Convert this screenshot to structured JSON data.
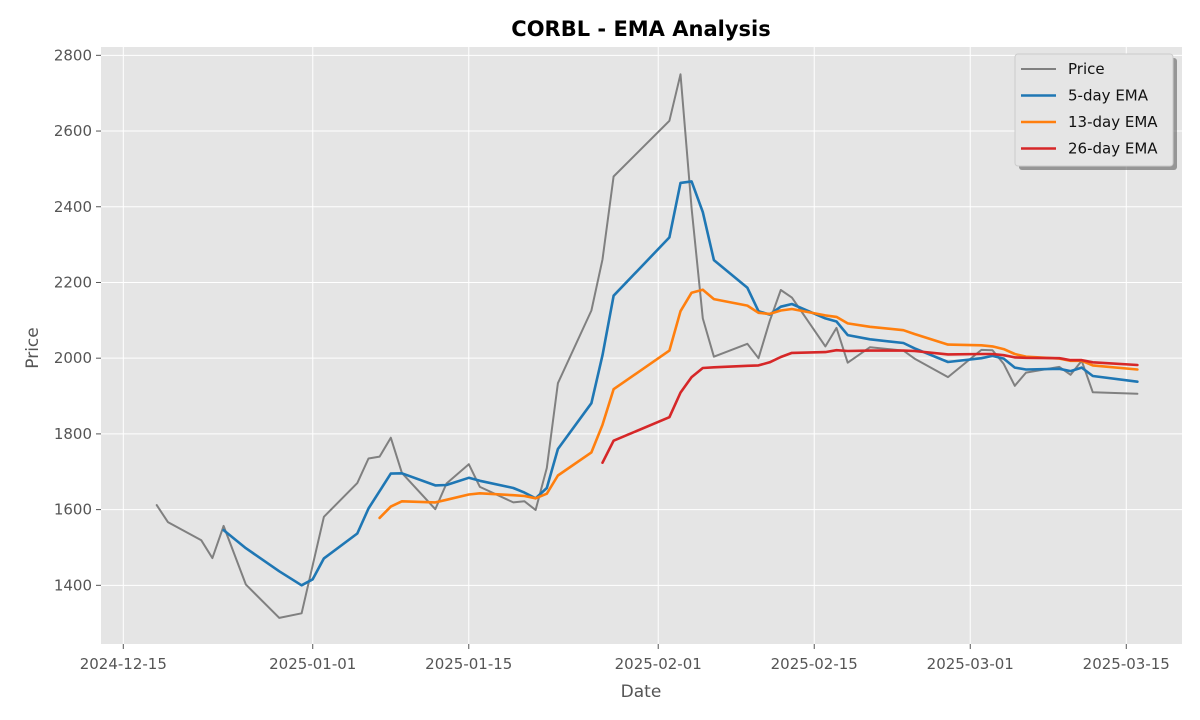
{
  "chart_data": {
    "type": "line",
    "title": "CORBL - EMA Analysis",
    "xlabel": "Date",
    "ylabel": "Price",
    "x_ticks": [
      "2024-12-15",
      "2025-01-01",
      "2025-01-15",
      "2025-02-01",
      "2025-02-15",
      "2025-03-01",
      "2025-03-15"
    ],
    "y_ticks": [
      1400,
      1600,
      1800,
      2000,
      2200,
      2400,
      2600,
      2800
    ],
    "xlim": [
      "2024-12-13",
      "2025-03-20"
    ],
    "ylim": [
      1245,
      2822
    ],
    "grid": true,
    "legend_position": "top-right",
    "series": [
      {
        "name": "Price",
        "color": "#808080",
        "points": [
          [
            "2024-12-18",
            1612
          ],
          [
            "2024-12-19",
            1567
          ],
          [
            "2024-12-22",
            1519
          ],
          [
            "2024-12-23",
            1472
          ],
          [
            "2024-12-24",
            1557
          ],
          [
            "2024-12-26",
            1402
          ],
          [
            "2024-12-29",
            1314
          ],
          [
            "2024-12-31",
            1326
          ],
          [
            "2025-01-02",
            1581
          ],
          [
            "2025-01-05",
            1670
          ],
          [
            "2025-01-06",
            1735
          ],
          [
            "2025-01-07",
            1740
          ],
          [
            "2025-01-08",
            1790
          ],
          [
            "2025-01-09",
            1697
          ],
          [
            "2025-01-12",
            1601
          ],
          [
            "2025-01-13",
            1669
          ],
          [
            "2025-01-15",
            1720
          ],
          [
            "2025-01-16",
            1660
          ],
          [
            "2025-01-19",
            1619
          ],
          [
            "2025-01-20",
            1622
          ],
          [
            "2025-01-21",
            1599
          ],
          [
            "2025-01-22",
            1710
          ],
          [
            "2025-01-23",
            1934
          ],
          [
            "2025-01-26",
            2126
          ],
          [
            "2025-01-27",
            2261
          ],
          [
            "2025-01-28",
            2480
          ],
          [
            "2025-02-02",
            2627
          ],
          [
            "2025-02-03",
            2750
          ],
          [
            "2025-02-04",
            2396
          ],
          [
            "2025-02-05",
            2105
          ],
          [
            "2025-02-06",
            2004
          ],
          [
            "2025-02-09",
            2038
          ],
          [
            "2025-02-10",
            2000
          ],
          [
            "2025-02-11",
            2098
          ],
          [
            "2025-02-12",
            2180
          ],
          [
            "2025-02-13",
            2160
          ],
          [
            "2025-02-16",
            2031
          ],
          [
            "2025-02-17",
            2080
          ],
          [
            "2025-02-18",
            1988
          ],
          [
            "2025-02-20",
            2029
          ],
          [
            "2025-02-23",
            2020
          ],
          [
            "2025-02-24",
            1999
          ],
          [
            "2025-02-27",
            1950
          ],
          [
            "2025-03-02",
            2022
          ],
          [
            "2025-03-03",
            2021
          ],
          [
            "2025-03-04",
            1985
          ],
          [
            "2025-03-05",
            1927
          ],
          [
            "2025-03-06",
            1962
          ],
          [
            "2025-03-09",
            1977
          ],
          [
            "2025-03-10",
            1956
          ],
          [
            "2025-03-11",
            1993
          ],
          [
            "2025-03-12",
            1910
          ],
          [
            "2025-03-16",
            1906
          ]
        ]
      },
      {
        "name": "5-day EMA",
        "color": "#1f77b4",
        "points": [
          [
            "2024-12-24",
            1546
          ],
          [
            "2024-12-26",
            1498
          ],
          [
            "2024-12-29",
            1437
          ],
          [
            "2024-12-31",
            1400
          ],
          [
            "2025-01-01",
            1416
          ],
          [
            "2025-01-02",
            1471
          ],
          [
            "2025-01-05",
            1537
          ],
          [
            "2025-01-06",
            1603
          ],
          [
            "2025-01-08",
            1695
          ],
          [
            "2025-01-09",
            1696
          ],
          [
            "2025-01-12",
            1664
          ],
          [
            "2025-01-13",
            1665
          ],
          [
            "2025-01-15",
            1684
          ],
          [
            "2025-01-16",
            1676
          ],
          [
            "2025-01-19",
            1657
          ],
          [
            "2025-01-20",
            1645
          ],
          [
            "2025-01-21",
            1630
          ],
          [
            "2025-01-22",
            1657
          ],
          [
            "2025-01-23",
            1760
          ],
          [
            "2025-01-26",
            1881
          ],
          [
            "2025-01-27",
            2008
          ],
          [
            "2025-01-28",
            2165
          ],
          [
            "2025-02-02",
            2319
          ],
          [
            "2025-02-03",
            2463
          ],
          [
            "2025-02-04",
            2467
          ],
          [
            "2025-02-05",
            2386
          ],
          [
            "2025-02-06",
            2259
          ],
          [
            "2025-02-09",
            2186
          ],
          [
            "2025-02-10",
            2124
          ],
          [
            "2025-02-11",
            2115
          ],
          [
            "2025-02-12",
            2136
          ],
          [
            "2025-02-13",
            2143
          ],
          [
            "2025-02-16",
            2105
          ],
          [
            "2025-02-17",
            2097
          ],
          [
            "2025-02-18",
            2061
          ],
          [
            "2025-02-20",
            2050
          ],
          [
            "2025-02-23",
            2040
          ],
          [
            "2025-02-24",
            2026
          ],
          [
            "2025-02-27",
            1990
          ],
          [
            "2025-03-02",
            2000
          ],
          [
            "2025-03-03",
            2006
          ],
          [
            "2025-03-04",
            1999
          ],
          [
            "2025-03-05",
            1975
          ],
          [
            "2025-03-06",
            1970
          ],
          [
            "2025-03-09",
            1972
          ],
          [
            "2025-03-10",
            1966
          ],
          [
            "2025-03-11",
            1975
          ],
          [
            "2025-03-12",
            1953
          ],
          [
            "2025-03-16",
            1938
          ]
        ]
      },
      {
        "name": "13-day EMA",
        "color": "#ff7f0e",
        "points": [
          [
            "2025-01-07",
            1578
          ],
          [
            "2025-01-08",
            1608
          ],
          [
            "2025-01-09",
            1622
          ],
          [
            "2025-01-12",
            1619
          ],
          [
            "2025-01-13",
            1626
          ],
          [
            "2025-01-15",
            1640
          ],
          [
            "2025-01-16",
            1643
          ],
          [
            "2025-01-19",
            1638
          ],
          [
            "2025-01-20",
            1636
          ],
          [
            "2025-01-21",
            1630
          ],
          [
            "2025-01-22",
            1642
          ],
          [
            "2025-01-23",
            1690
          ],
          [
            "2025-01-26",
            1751
          ],
          [
            "2025-01-27",
            1824
          ],
          [
            "2025-01-28",
            1918
          ],
          [
            "2025-02-02",
            2020
          ],
          [
            "2025-02-03",
            2124
          ],
          [
            "2025-02-04",
            2173
          ],
          [
            "2025-02-05",
            2181
          ],
          [
            "2025-02-06",
            2156
          ],
          [
            "2025-02-09",
            2139
          ],
          [
            "2025-02-10",
            2120
          ],
          [
            "2025-02-11",
            2117
          ],
          [
            "2025-02-12",
            2126
          ],
          [
            "2025-02-13",
            2130
          ],
          [
            "2025-02-16",
            2113
          ],
          [
            "2025-02-17",
            2109
          ],
          [
            "2025-02-18",
            2092
          ],
          [
            "2025-02-20",
            2083
          ],
          [
            "2025-02-23",
            2074
          ],
          [
            "2025-02-24",
            2064
          ],
          [
            "2025-02-27",
            2036
          ],
          [
            "2025-03-02",
            2034
          ],
          [
            "2025-03-03",
            2031
          ],
          [
            "2025-03-04",
            2024
          ],
          [
            "2025-03-05",
            2011
          ],
          [
            "2025-03-06",
            2004
          ],
          [
            "2025-03-09",
            1999
          ],
          [
            "2025-03-10",
            1993
          ],
          [
            "2025-03-11",
            1993
          ],
          [
            "2025-03-12",
            1981
          ],
          [
            "2025-03-16",
            1970
          ]
        ]
      },
      {
        "name": "26-day EMA",
        "color": "#d62728",
        "points": [
          [
            "2025-01-27",
            1724
          ],
          [
            "2025-01-28",
            1782
          ],
          [
            "2025-02-02",
            1844
          ],
          [
            "2025-02-03",
            1909
          ],
          [
            "2025-02-04",
            1950
          ],
          [
            "2025-02-05",
            1974
          ],
          [
            "2025-02-06",
            1976
          ],
          [
            "2025-02-09",
            1980
          ],
          [
            "2025-02-10",
            1981
          ],
          [
            "2025-02-11",
            1989
          ],
          [
            "2025-02-12",
            2003
          ],
          [
            "2025-02-13",
            2014
          ],
          [
            "2025-02-16",
            2016
          ],
          [
            "2025-02-17",
            2021
          ],
          [
            "2025-02-18",
            2019
          ],
          [
            "2025-02-20",
            2020
          ],
          [
            "2025-02-23",
            2020
          ],
          [
            "2025-02-24",
            2019
          ],
          [
            "2025-02-27",
            2010
          ],
          [
            "2025-03-02",
            2011
          ],
          [
            "2025-03-03",
            2011
          ],
          [
            "2025-03-04",
            2008
          ],
          [
            "2025-03-05",
            2002
          ],
          [
            "2025-03-06",
            2001
          ],
          [
            "2025-03-09",
            2000
          ],
          [
            "2025-03-10",
            1995
          ],
          [
            "2025-03-11",
            1995
          ],
          [
            "2025-03-12",
            1989
          ],
          [
            "2025-03-16",
            1982
          ]
        ]
      }
    ]
  },
  "colors": {
    "plot_background": "#e5e5e5",
    "grid": "#ffffff",
    "figure_background": "#ffffff"
  }
}
